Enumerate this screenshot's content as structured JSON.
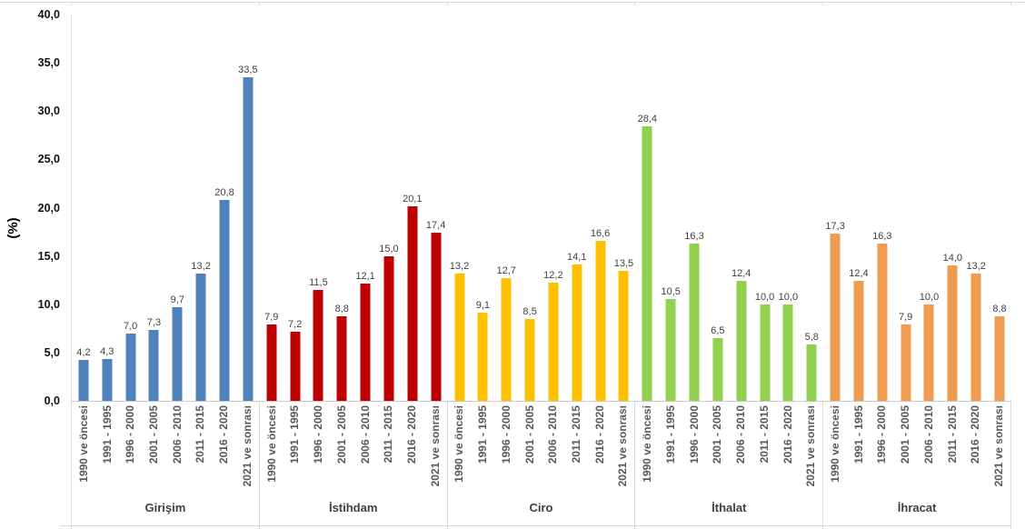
{
  "chart_data": {
    "type": "bar",
    "title": "",
    "ylabel": "(%)",
    "xlabel": "",
    "ylim": [
      0,
      40
    ],
    "y_tick_step": 5,
    "y_tick_labels": [
      "0,0",
      "5,0",
      "10,0",
      "15,0",
      "20,0",
      "25,0",
      "30,0",
      "35,0",
      "40,0"
    ],
    "grid": false,
    "legend_position": "none",
    "decimal_separator": ",",
    "categories": [
      "1990 ve öncesi",
      "1991 - 1995",
      "1996 - 2000",
      "2001 - 2005",
      "2006 - 2010",
      "2011 - 2015",
      "2016 - 2020",
      "2021 ve sonrası"
    ],
    "groups": [
      {
        "name": "Girişim",
        "color": "#4f81bd",
        "values": [
          4.2,
          4.3,
          7.0,
          7.3,
          9.7,
          13.2,
          20.8,
          33.5
        ],
        "value_labels": [
          "4,2",
          "4,3",
          "7,0",
          "7,3",
          "9,7",
          "13,2",
          "20,8",
          "33,5"
        ]
      },
      {
        "name": "İstihdam",
        "color": "#c00000",
        "values": [
          7.9,
          7.2,
          11.5,
          8.8,
          12.1,
          15.0,
          20.1,
          17.4
        ],
        "value_labels": [
          "7,9",
          "7,2",
          "11,5",
          "8,8",
          "12,1",
          "15,0",
          "20,1",
          "17,4"
        ]
      },
      {
        "name": "Ciro",
        "color": "#ffc000",
        "values": [
          13.2,
          9.1,
          12.7,
          8.5,
          12.2,
          14.1,
          16.6,
          13.5
        ],
        "value_labels": [
          "13,2",
          "9,1",
          "12,7",
          "8,5",
          "12,2",
          "14,1",
          "16,6",
          "13,5"
        ]
      },
      {
        "name": "İthalat",
        "color": "#92d050",
        "values": [
          28.4,
          10.5,
          16.3,
          6.5,
          12.4,
          10.0,
          10.0,
          5.8
        ],
        "value_labels": [
          "28,4",
          "10,5",
          "16,3",
          "6,5",
          "12,4",
          "10,0",
          "10,0",
          "5,8"
        ]
      },
      {
        "name": "İhracat",
        "color": "#ef9b51",
        "values": [
          17.3,
          12.4,
          16.3,
          7.9,
          10.0,
          14.0,
          13.2,
          8.8
        ],
        "value_labels": [
          "17,3",
          "12,4",
          "16,3",
          "7,9",
          "10,0",
          "14,0",
          "13,2",
          "8,8"
        ]
      }
    ]
  }
}
